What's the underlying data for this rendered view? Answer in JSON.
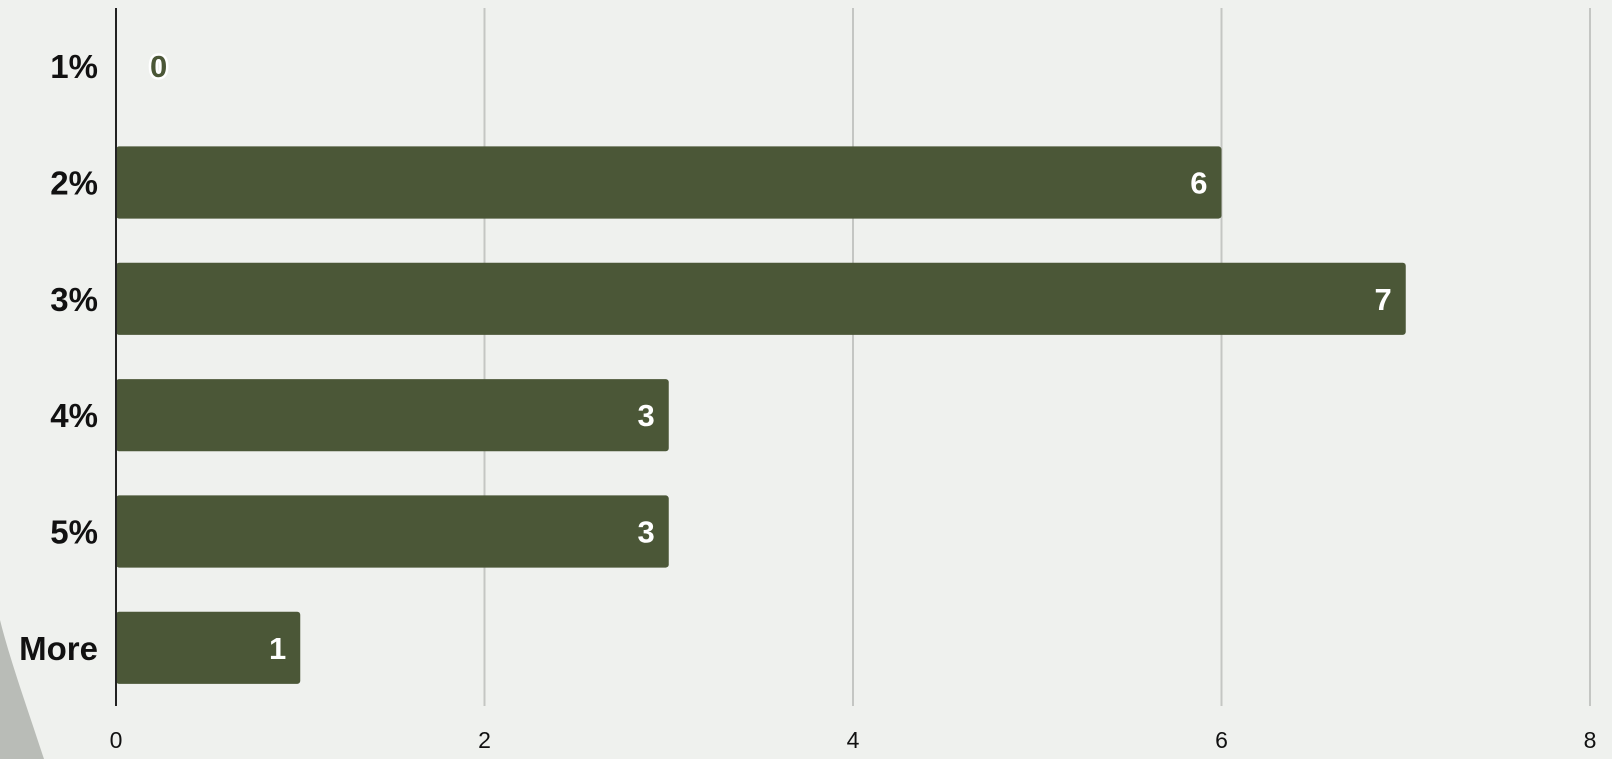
{
  "chart_data": {
    "type": "bar",
    "orientation": "horizontal",
    "categories": [
      "1%",
      "2%",
      "3%",
      "4%",
      "5%",
      "More"
    ],
    "values": [
      0,
      6,
      7,
      3,
      3,
      1
    ],
    "data_labels": [
      "0",
      "6",
      "7",
      "3",
      "3",
      "1"
    ],
    "x_ticks": [
      "0",
      "2",
      "4",
      "6",
      "8"
    ],
    "xlim": [
      0,
      8
    ],
    "title": "",
    "xlabel": "",
    "ylabel": "",
    "grid": "vertical",
    "legend": "none",
    "colors": {
      "bar": "#4b5737",
      "bar_label_inside": "#ffffff",
      "bar_label_outside": "#4b5737",
      "grid": "#c4c6c3",
      "axis": "#222222",
      "background": "#eff1ee",
      "text": "#111111"
    }
  }
}
